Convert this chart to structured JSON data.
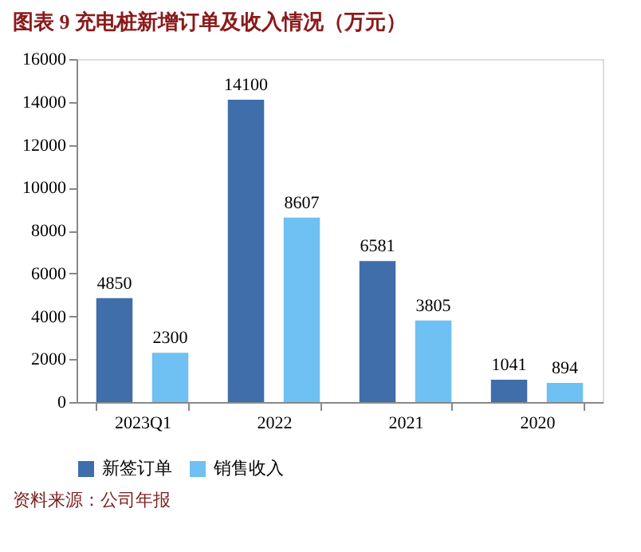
{
  "chart_data": {
    "type": "bar",
    "title": "图表 9 充电桩新增订单及收入情况（万元）",
    "categories": [
      "2023Q1",
      "2022",
      "2021",
      "2020"
    ],
    "series": [
      {
        "name": "新签订单",
        "color": "#3f6eaa",
        "values": [
          4850,
          14100,
          6581,
          1041
        ]
      },
      {
        "name": "销售收入",
        "color": "#6ec1f2",
        "values": [
          2300,
          8607,
          3805,
          894
        ]
      }
    ],
    "ylim": [
      0,
      16000
    ],
    "yticks": [
      0,
      2000,
      4000,
      6000,
      8000,
      10000,
      12000,
      14000,
      16000
    ],
    "grid": false,
    "legend": "bottom",
    "data_labels": true,
    "annotations": [
      "资料来源：公司年报"
    ]
  }
}
